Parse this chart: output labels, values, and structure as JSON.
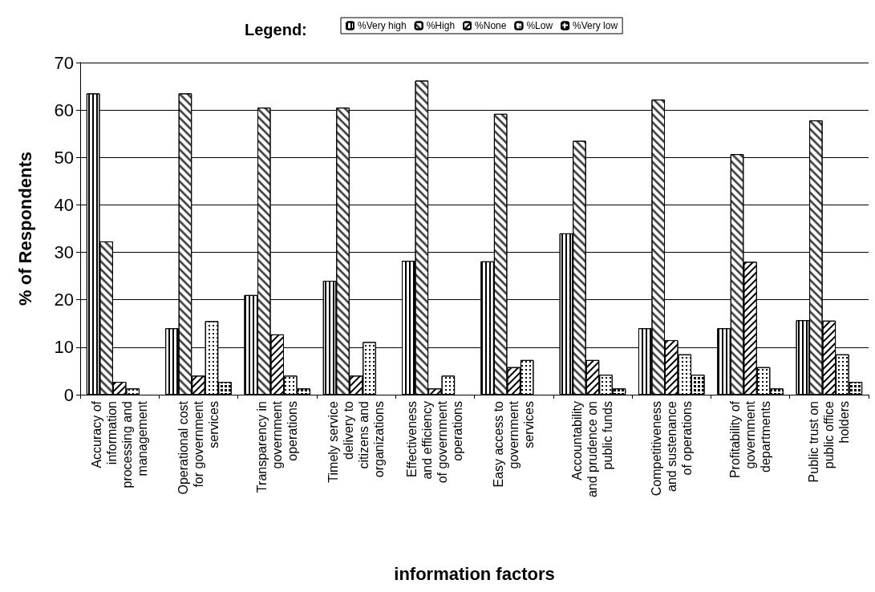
{
  "chart_data": {
    "type": "bar",
    "xlabel": "information factors",
    "ylabel": "% of Respondents",
    "legend_title": "Legend:",
    "categories": [
      "Accuracy of information processing and management",
      "Operational cost for government services",
      "Transparency in government operations",
      "Timely service delivery to citizens and organizations",
      "Effectiveness and efficiency of government operations",
      "Easy access to government services",
      "Accountability and prudence on public funds",
      "Competitiveness and sustenance of operations",
      "Profitability of government departments",
      "Public trust on public office holders"
    ],
    "series": [
      {
        "name": "%Very high",
        "color": "#ffffff",
        "values": [
          63.5,
          14,
          21,
          24,
          28.2,
          28.1,
          34,
          14,
          14,
          15.7
        ]
      },
      {
        "name": "%High",
        "color": "#ffffff",
        "values": [
          32.3,
          63.5,
          60.5,
          60.5,
          66.2,
          59.2,
          53.5,
          62.2,
          50.7,
          57.8
        ]
      },
      {
        "name": "%None",
        "color": "#ffffff",
        "values": [
          2.7,
          4,
          12.7,
          4,
          1.3,
          5.8,
          7.3,
          11.5,
          28,
          15.6
        ]
      },
      {
        "name": "%Low",
        "color": "#ffffff",
        "values": [
          1.3,
          15.5,
          4,
          11.1,
          4,
          7.3,
          4.2,
          8.5,
          5.8,
          8.5
        ]
      },
      {
        "name": "%Very low",
        "color": "#ffffff",
        "values": [
          null,
          2.7,
          1.3,
          null,
          null,
          null,
          1.3,
          4.2,
          1.3,
          2.7
        ]
      }
    ],
    "ylim": [
      0,
      70
    ],
    "yticks": [
      0,
      10,
      20,
      30,
      40,
      50,
      60,
      70
    ],
    "grid": "y",
    "legend": "top"
  }
}
